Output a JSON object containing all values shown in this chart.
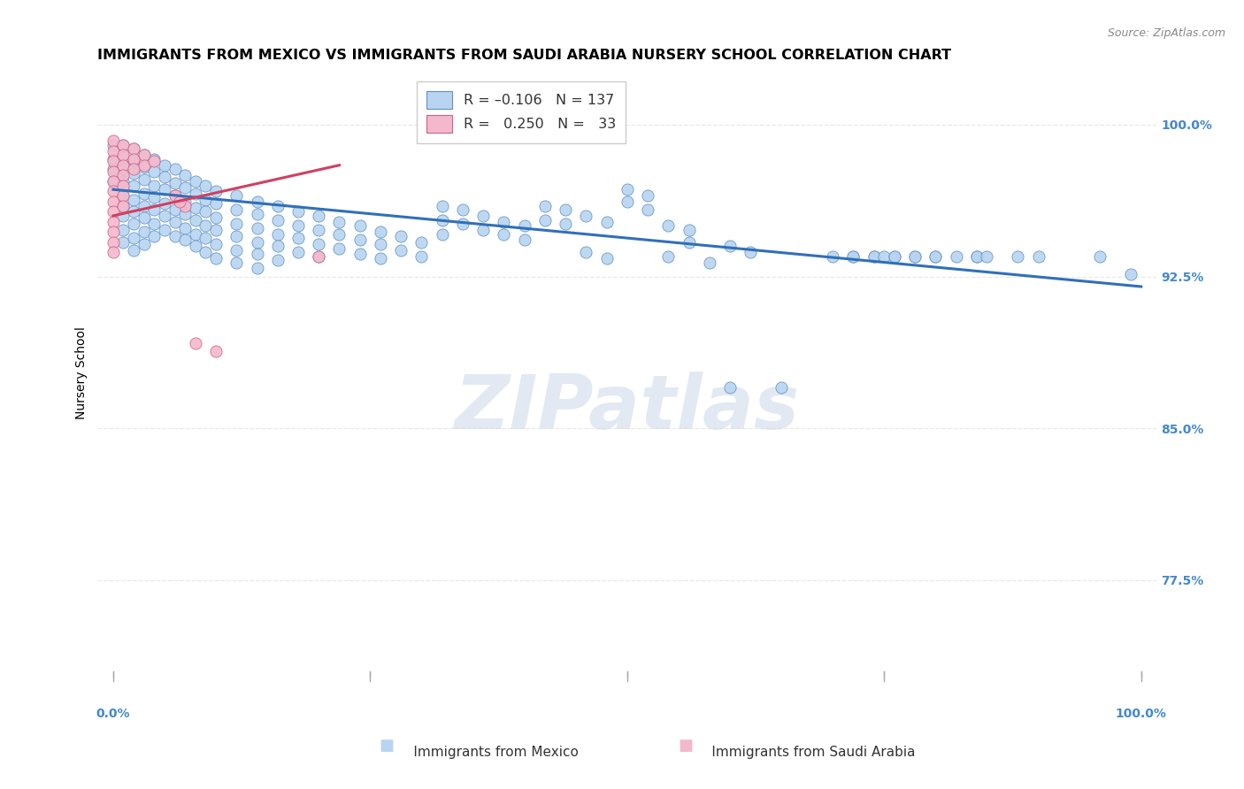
{
  "title": "IMMIGRANTS FROM MEXICO VS IMMIGRANTS FROM SAUDI ARABIA NURSERY SCHOOL CORRELATION CHART",
  "source": "Source: ZipAtlas.com",
  "ylabel": "Nursery School",
  "ytick_labels": [
    "100.0%",
    "92.5%",
    "85.0%",
    "77.5%"
  ],
  "ytick_values": [
    1.0,
    0.925,
    0.85,
    0.775
  ],
  "watermark": "ZIPatlas",
  "blue_scatter": [
    [
      0.0,
      0.99
    ],
    [
      0.0,
      0.983
    ],
    [
      0.0,
      0.978
    ],
    [
      0.0,
      0.972
    ],
    [
      0.01,
      0.99
    ],
    [
      0.01,
      0.984
    ],
    [
      0.01,
      0.978
    ],
    [
      0.01,
      0.972
    ],
    [
      0.01,
      0.965
    ],
    [
      0.01,
      0.96
    ],
    [
      0.01,
      0.955
    ],
    [
      0.01,
      0.948
    ],
    [
      0.01,
      0.942
    ],
    [
      0.02,
      0.988
    ],
    [
      0.02,
      0.982
    ],
    [
      0.02,
      0.976
    ],
    [
      0.02,
      0.97
    ],
    [
      0.02,
      0.963
    ],
    [
      0.02,
      0.957
    ],
    [
      0.02,
      0.951
    ],
    [
      0.02,
      0.944
    ],
    [
      0.02,
      0.938
    ],
    [
      0.03,
      0.985
    ],
    [
      0.03,
      0.979
    ],
    [
      0.03,
      0.973
    ],
    [
      0.03,
      0.966
    ],
    [
      0.03,
      0.96
    ],
    [
      0.03,
      0.954
    ],
    [
      0.03,
      0.947
    ],
    [
      0.03,
      0.941
    ],
    [
      0.04,
      0.983
    ],
    [
      0.04,
      0.977
    ],
    [
      0.04,
      0.97
    ],
    [
      0.04,
      0.964
    ],
    [
      0.04,
      0.958
    ],
    [
      0.04,
      0.951
    ],
    [
      0.04,
      0.945
    ],
    [
      0.05,
      0.98
    ],
    [
      0.05,
      0.974
    ],
    [
      0.05,
      0.968
    ],
    [
      0.05,
      0.961
    ],
    [
      0.05,
      0.955
    ],
    [
      0.05,
      0.948
    ],
    [
      0.06,
      0.978
    ],
    [
      0.06,
      0.971
    ],
    [
      0.06,
      0.965
    ],
    [
      0.06,
      0.958
    ],
    [
      0.06,
      0.952
    ],
    [
      0.06,
      0.945
    ],
    [
      0.07,
      0.975
    ],
    [
      0.07,
      0.969
    ],
    [
      0.07,
      0.962
    ],
    [
      0.07,
      0.956
    ],
    [
      0.07,
      0.949
    ],
    [
      0.07,
      0.943
    ],
    [
      0.08,
      0.972
    ],
    [
      0.08,
      0.966
    ],
    [
      0.08,
      0.959
    ],
    [
      0.08,
      0.953
    ],
    [
      0.08,
      0.946
    ],
    [
      0.08,
      0.94
    ],
    [
      0.09,
      0.97
    ],
    [
      0.09,
      0.963
    ],
    [
      0.09,
      0.957
    ],
    [
      0.09,
      0.95
    ],
    [
      0.09,
      0.944
    ],
    [
      0.09,
      0.937
    ],
    [
      0.1,
      0.967
    ],
    [
      0.1,
      0.961
    ],
    [
      0.1,
      0.954
    ],
    [
      0.1,
      0.948
    ],
    [
      0.1,
      0.941
    ],
    [
      0.1,
      0.934
    ],
    [
      0.12,
      0.965
    ],
    [
      0.12,
      0.958
    ],
    [
      0.12,
      0.951
    ],
    [
      0.12,
      0.945
    ],
    [
      0.12,
      0.938
    ],
    [
      0.12,
      0.932
    ],
    [
      0.14,
      0.962
    ],
    [
      0.14,
      0.956
    ],
    [
      0.14,
      0.949
    ],
    [
      0.14,
      0.942
    ],
    [
      0.14,
      0.936
    ],
    [
      0.14,
      0.929
    ],
    [
      0.16,
      0.96
    ],
    [
      0.16,
      0.953
    ],
    [
      0.16,
      0.946
    ],
    [
      0.16,
      0.94
    ],
    [
      0.16,
      0.933
    ],
    [
      0.18,
      0.957
    ],
    [
      0.18,
      0.95
    ],
    [
      0.18,
      0.944
    ],
    [
      0.18,
      0.937
    ],
    [
      0.2,
      0.955
    ],
    [
      0.2,
      0.948
    ],
    [
      0.2,
      0.941
    ],
    [
      0.2,
      0.935
    ],
    [
      0.22,
      0.952
    ],
    [
      0.22,
      0.946
    ],
    [
      0.22,
      0.939
    ],
    [
      0.24,
      0.95
    ],
    [
      0.24,
      0.943
    ],
    [
      0.24,
      0.936
    ],
    [
      0.26,
      0.947
    ],
    [
      0.26,
      0.941
    ],
    [
      0.26,
      0.934
    ],
    [
      0.28,
      0.945
    ],
    [
      0.28,
      0.938
    ],
    [
      0.3,
      0.942
    ],
    [
      0.3,
      0.935
    ],
    [
      0.32,
      0.96
    ],
    [
      0.32,
      0.953
    ],
    [
      0.32,
      0.946
    ],
    [
      0.34,
      0.958
    ],
    [
      0.34,
      0.951
    ],
    [
      0.36,
      0.955
    ],
    [
      0.36,
      0.948
    ],
    [
      0.38,
      0.952
    ],
    [
      0.38,
      0.946
    ],
    [
      0.4,
      0.95
    ],
    [
      0.4,
      0.943
    ],
    [
      0.42,
      0.96
    ],
    [
      0.42,
      0.953
    ],
    [
      0.44,
      0.958
    ],
    [
      0.44,
      0.951
    ],
    [
      0.46,
      0.955
    ],
    [
      0.46,
      0.937
    ],
    [
      0.48,
      0.952
    ],
    [
      0.48,
      0.934
    ],
    [
      0.5,
      0.968
    ],
    [
      0.5,
      0.962
    ],
    [
      0.52,
      0.965
    ],
    [
      0.52,
      0.958
    ],
    [
      0.54,
      0.95
    ],
    [
      0.54,
      0.935
    ],
    [
      0.56,
      0.948
    ],
    [
      0.56,
      0.942
    ],
    [
      0.58,
      0.932
    ],
    [
      0.6,
      0.94
    ],
    [
      0.6,
      0.87
    ],
    [
      0.62,
      0.937
    ],
    [
      0.65,
      0.87
    ],
    [
      0.7,
      0.935
    ],
    [
      0.72,
      0.935
    ],
    [
      0.72,
      0.935
    ],
    [
      0.74,
      0.935
    ],
    [
      0.74,
      0.935
    ],
    [
      0.75,
      0.935
    ],
    [
      0.76,
      0.935
    ],
    [
      0.76,
      0.935
    ],
    [
      0.78,
      0.935
    ],
    [
      0.78,
      0.935
    ],
    [
      0.8,
      0.935
    ],
    [
      0.8,
      0.935
    ],
    [
      0.82,
      0.935
    ],
    [
      0.84,
      0.935
    ],
    [
      0.84,
      0.935
    ],
    [
      0.85,
      0.935
    ],
    [
      0.88,
      0.935
    ],
    [
      0.9,
      0.935
    ],
    [
      0.96,
      0.935
    ],
    [
      0.99,
      0.926
    ]
  ],
  "pink_scatter": [
    [
      0.0,
      0.992
    ],
    [
      0.0,
      0.987
    ],
    [
      0.0,
      0.982
    ],
    [
      0.0,
      0.977
    ],
    [
      0.0,
      0.972
    ],
    [
      0.0,
      0.967
    ],
    [
      0.0,
      0.962
    ],
    [
      0.0,
      0.957
    ],
    [
      0.0,
      0.952
    ],
    [
      0.0,
      0.947
    ],
    [
      0.0,
      0.942
    ],
    [
      0.0,
      0.937
    ],
    [
      0.01,
      0.99
    ],
    [
      0.01,
      0.985
    ],
    [
      0.01,
      0.98
    ],
    [
      0.01,
      0.975
    ],
    [
      0.01,
      0.97
    ],
    [
      0.01,
      0.965
    ],
    [
      0.01,
      0.96
    ],
    [
      0.02,
      0.988
    ],
    [
      0.02,
      0.983
    ],
    [
      0.02,
      0.978
    ],
    [
      0.03,
      0.985
    ],
    [
      0.03,
      0.98
    ],
    [
      0.04,
      0.982
    ],
    [
      0.06,
      0.965
    ],
    [
      0.07,
      0.96
    ],
    [
      0.065,
      0.962
    ],
    [
      0.08,
      0.892
    ],
    [
      0.1,
      0.888
    ],
    [
      0.2,
      0.935
    ]
  ],
  "blue_line": {
    "x0": 0.0,
    "y0": 0.968,
    "x1": 1.0,
    "y1": 0.92
  },
  "pink_line": {
    "x0": 0.0,
    "y0": 0.955,
    "x1": 0.22,
    "y1": 0.98
  },
  "ylim": [
    0.73,
    1.025
  ],
  "xlim": [
    -0.015,
    1.015
  ],
  "blue_color": "#b8d4f0",
  "pink_color": "#f4b8cc",
  "blue_edge_color": "#6090c8",
  "pink_edge_color": "#d06080",
  "blue_line_color": "#3070b8",
  "pink_line_color": "#d04060",
  "grid_color": "#e8e8e8",
  "axis_label_color": "#4488cc",
  "title_fontsize": 11.5,
  "axis_fontsize": 10
}
